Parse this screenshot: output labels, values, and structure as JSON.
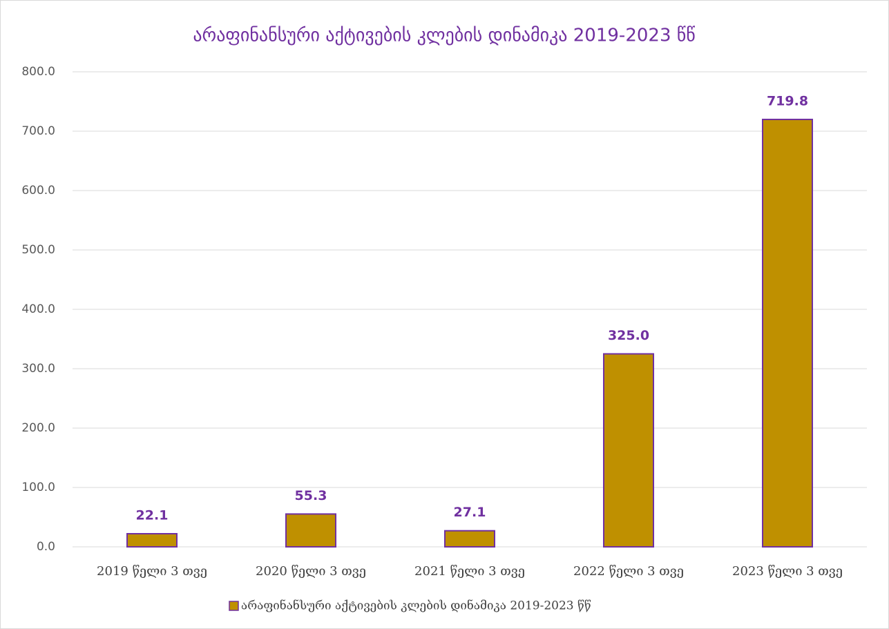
{
  "chart_data": {
    "type": "bar",
    "title": "არაფინანსური აქტივების კლების დინამიკა 2019-2023 წწ",
    "categories": [
      "2019 წელი 3 თვე",
      "2020 წელი 3 თვე",
      "2021 წელი 3 თვე",
      "2022 წელი 3 თვე",
      "2023 წელი 3 თვე"
    ],
    "series": [
      {
        "name": "არაფინანსური აქტივების კლების დინამიკა 2019-2023 წწ",
        "color": "#bf9000",
        "edgecolor": "#7030a0",
        "values": [
          22.1,
          55.3,
          27.1,
          325.0,
          719.8
        ],
        "value_labels": [
          "22.1",
          "55.3",
          "27.1",
          "325.0",
          "719.8"
        ]
      }
    ],
    "ylim": [
      0,
      800
    ],
    "yticks": [
      {
        "value": 0,
        "label": "0.0"
      },
      {
        "value": 100,
        "label": "100.0"
      },
      {
        "value": 200,
        "label": "200.0"
      },
      {
        "value": 300,
        "label": "300.0"
      },
      {
        "value": 400,
        "label": "400.0"
      },
      {
        "value": 500,
        "label": "500.0"
      },
      {
        "value": 600,
        "label": "600.0"
      },
      {
        "value": 700,
        "label": "700.0"
      },
      {
        "value": 800,
        "label": "800.0"
      }
    ],
    "grid": true,
    "legend": "bottom"
  }
}
